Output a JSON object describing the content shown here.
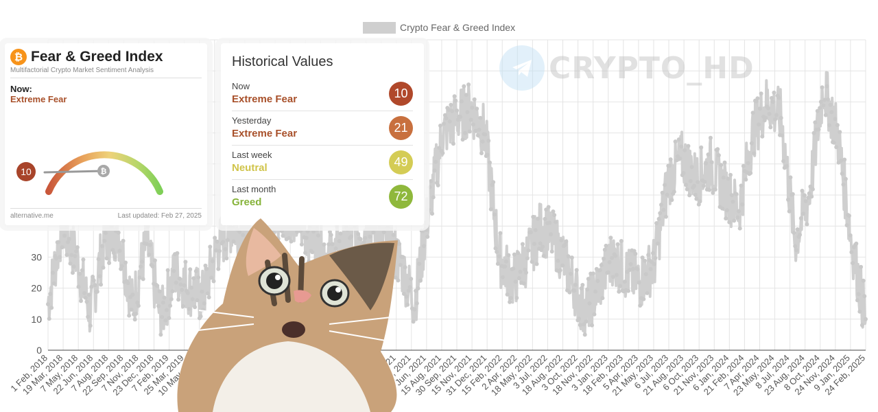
{
  "chart_data": {
    "type": "line",
    "legend": "Crypto Fear & Greed Index",
    "yticks": [
      0,
      10,
      20,
      30
    ],
    "ylim": [
      0,
      100
    ],
    "x_tick_labels": [
      "1 Feb, 2018",
      "19 Mar, 2018",
      "7 May, 2018",
      "22 Jun, 2018",
      "7 Aug, 2018",
      "22 Sep, 2018",
      "7 Nov, 2018",
      "23 Dec, 2018",
      "7 Feb, 2019",
      "25 Mar, 2019",
      "10 May, 2019",
      "",
      "",
      "",
      "",
      "",
      "",
      "",
      "",
      "",
      "",
      "",
      "",
      ", 2021",
      "15 May, 2021",
      "30 Jun, 2021",
      "15 Aug, 2021",
      "30 Sep, 2021",
      "15 Nov, 2021",
      "31 Dec, 2021",
      "15 Feb, 2022",
      "2 Apr, 2022",
      "18 May, 2022",
      "3 Jul, 2022",
      "18 Aug, 2022",
      "3 Oct, 2022",
      "18 Nov, 2022",
      "3 Jan, 2023",
      "18 Feb, 2023",
      "5 Apr, 2023",
      "21 May, 2023",
      "6 Jul, 2023",
      "21 Aug, 2023",
      "6 Oct, 2023",
      "21 Nov, 2023",
      "6 Jan, 2024",
      "21 Feb, 2024",
      "7 Apr, 2024",
      "23 May, 2024",
      "8 Jul, 2024",
      "23 Aug, 2024",
      "8 Oct, 2024",
      "24 Nov, 2024",
      "9 Jan, 2025",
      "24 Feb, 2025"
    ],
    "series_anchors": [
      [
        0,
        15
      ],
      [
        1,
        40
      ],
      [
        2,
        30
      ],
      [
        3,
        12
      ],
      [
        4,
        36
      ],
      [
        5,
        38
      ],
      [
        6,
        14
      ],
      [
        7,
        35
      ],
      [
        8,
        10
      ],
      [
        9,
        25
      ],
      [
        10,
        20
      ],
      [
        11,
        17
      ],
      [
        12,
        33
      ],
      [
        13,
        40
      ],
      [
        14,
        38
      ],
      [
        15,
        30
      ],
      [
        16,
        42
      ],
      [
        17,
        45
      ],
      [
        18,
        40
      ],
      [
        19,
        35
      ],
      [
        20,
        30
      ],
      [
        21,
        33
      ],
      [
        22,
        38
      ],
      [
        23,
        40
      ],
      [
        24,
        36
      ],
      [
        25,
        28
      ],
      [
        26,
        15
      ],
      [
        27,
        45
      ],
      [
        28,
        70
      ],
      [
        29,
        75
      ],
      [
        30,
        78
      ],
      [
        31,
        70
      ],
      [
        32,
        30
      ],
      [
        33,
        22
      ],
      [
        34,
        30
      ],
      [
        35,
        40
      ],
      [
        36,
        35
      ],
      [
        37,
        25
      ],
      [
        38,
        12
      ],
      [
        39,
        20
      ],
      [
        40,
        30
      ],
      [
        41,
        25
      ],
      [
        42,
        22
      ],
      [
        43,
        28
      ],
      [
        44,
        55
      ],
      [
        45,
        62
      ],
      [
        46,
        55
      ],
      [
        47,
        60
      ],
      [
        48,
        52
      ],
      [
        49,
        45
      ],
      [
        50,
        70
      ],
      [
        51,
        80
      ],
      [
        52,
        75
      ],
      [
        53,
        35
      ],
      [
        54,
        50
      ],
      [
        55,
        85
      ],
      [
        56,
        70
      ],
      [
        57,
        35
      ],
      [
        58,
        10
      ]
    ],
    "grid": true
  },
  "fear_greed_card": {
    "title": "Fear & Greed Index",
    "subtitle": "Multifactorial Crypto Market Sentiment Analysis",
    "now_label": "Now:",
    "now_class": "Extreme Fear",
    "value": "10",
    "gauge_level": 0.1,
    "source": "alternative.me",
    "updated": "Last updated: Feb 27, 2025",
    "btc_symbol": "₿"
  },
  "historical": {
    "title": "Historical Values",
    "rows": [
      {
        "label": "Now",
        "class": "Extreme Fear",
        "value": "10",
        "color": "#b0482a",
        "class_color": "#a8502a"
      },
      {
        "label": "Yesterday",
        "class": "Extreme Fear",
        "value": "21",
        "color": "#c8703e",
        "class_color": "#a8502a"
      },
      {
        "label": "Last week",
        "class": "Neutral",
        "value": "49",
        "color": "#d4cc55",
        "class_color": "#d0c44a"
      },
      {
        "label": "Last month",
        "class": "Greed",
        "value": "72",
        "color": "#8fb83c",
        "class_color": "#86b33a"
      }
    ]
  },
  "watermark": {
    "text": "CRYPTO_HD",
    "icon": "telegram-icon"
  },
  "sticker": {
    "icon": "surprised-cat"
  }
}
